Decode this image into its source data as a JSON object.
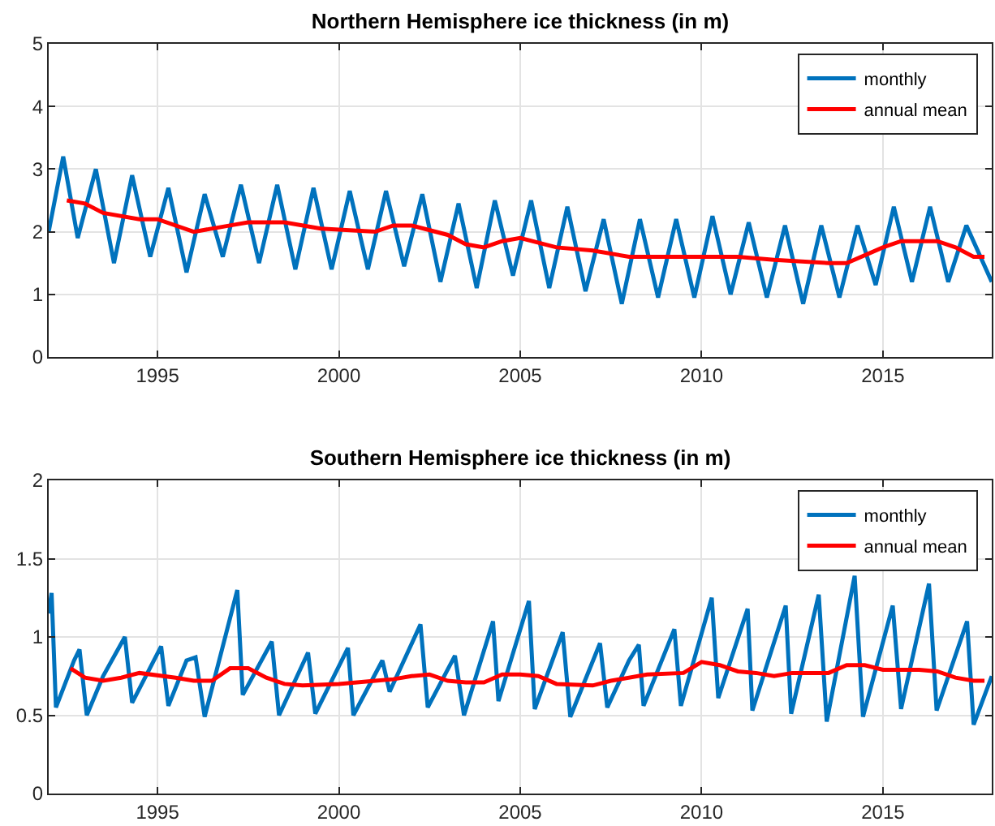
{
  "chart_data": [
    {
      "type": "line",
      "title": "Northern Hemisphere ice thickness (in m)",
      "xlim": [
        1992,
        2018
      ],
      "xticks": [
        1995,
        2000,
        2005,
        2010,
        2015
      ],
      "ylim": [
        0,
        5
      ],
      "yticks": [
        0,
        1,
        2,
        3,
        4,
        5
      ],
      "grid": true,
      "legend": "top right",
      "series": [
        {
          "name": "monthly",
          "color": "#0072bd",
          "x": [
            1992.0,
            1992.4,
            1992.8,
            1993.3,
            1993.8,
            1994.3,
            1994.8,
            1995.3,
            1995.8,
            1996.3,
            1996.8,
            1997.3,
            1997.8,
            1998.3,
            1998.8,
            1999.3,
            1999.8,
            2000.3,
            2000.8,
            2001.3,
            2001.8,
            2002.3,
            2002.8,
            2003.3,
            2003.8,
            2004.3,
            2004.8,
            2005.3,
            2005.8,
            2006.3,
            2006.8,
            2007.3,
            2007.8,
            2008.3,
            2008.8,
            2009.3,
            2009.8,
            2010.3,
            2010.8,
            2011.3,
            2011.8,
            2012.3,
            2012.8,
            2013.3,
            2013.8,
            2014.3,
            2014.8,
            2015.3,
            2015.8,
            2016.3,
            2016.8,
            2017.3,
            2018.0
          ],
          "values": [
            2.0,
            3.2,
            1.9,
            3.0,
            1.5,
            2.9,
            1.6,
            2.7,
            1.35,
            2.6,
            1.6,
            2.75,
            1.5,
            2.75,
            1.4,
            2.7,
            1.4,
            2.65,
            1.4,
            2.65,
            1.45,
            2.6,
            1.2,
            2.45,
            1.1,
            2.5,
            1.3,
            2.5,
            1.1,
            2.4,
            1.05,
            2.2,
            0.85,
            2.2,
            0.95,
            2.2,
            0.95,
            2.25,
            1.0,
            2.15,
            0.95,
            2.1,
            0.85,
            2.1,
            0.95,
            2.1,
            1.15,
            2.4,
            1.2,
            2.4,
            1.2,
            2.1,
            1.2
          ]
        },
        {
          "name": "annual mean",
          "color": "#ff0000",
          "x": [
            1992.5,
            1993,
            1993.5,
            1994.5,
            1995,
            1996,
            1997,
            1997.5,
            1998.5,
            1999.5,
            2001,
            2001.5,
            2002,
            2003,
            2003.5,
            2004,
            2004.5,
            2005,
            2006,
            2007,
            2008,
            2010,
            2011,
            2012,
            2013.5,
            2014,
            2015,
            2015.5,
            2016.5,
            2017,
            2017.5,
            2017.8
          ],
          "values": [
            2.5,
            2.45,
            2.3,
            2.2,
            2.2,
            2.0,
            2.1,
            2.15,
            2.15,
            2.05,
            2.0,
            2.1,
            2.1,
            1.95,
            1.8,
            1.75,
            1.85,
            1.9,
            1.75,
            1.7,
            1.6,
            1.6,
            1.6,
            1.55,
            1.5,
            1.5,
            1.75,
            1.85,
            1.85,
            1.75,
            1.6,
            1.6
          ]
        }
      ]
    },
    {
      "type": "line",
      "title": "Southern Hemisphere ice thickness (in m)",
      "xlim": [
        1992,
        2018
      ],
      "xticks": [
        1995,
        2000,
        2005,
        2010,
        2015
      ],
      "ylim": [
        0,
        2
      ],
      "yticks": [
        0,
        0.5,
        1,
        1.5,
        2
      ],
      "grid": true,
      "legend": "top right",
      "series": [
        {
          "name": "monthly",
          "color": "#0072bd",
          "x": [
            1992.0,
            1992.08,
            1992.2,
            1992.7,
            1992.85,
            1993.05,
            1993.5,
            1994.1,
            1994.3,
            1995.1,
            1995.3,
            1995.8,
            1996.05,
            1996.3,
            1997.2,
            1997.35,
            1998.15,
            1998.35,
            1999.15,
            1999.35,
            2000.25,
            2000.4,
            2001.2,
            2001.4,
            2002.25,
            2002.45,
            2003.2,
            2003.45,
            2004.25,
            2004.4,
            2005.24,
            2005.4,
            2006.17,
            2006.38,
            2007.2,
            2007.4,
            2008.0,
            2008.27,
            2008.4,
            2009.25,
            2009.43,
            2010.28,
            2010.46,
            2011.27,
            2011.4,
            2012.32,
            2012.47,
            2013.23,
            2013.45,
            2014.22,
            2014.45,
            2015.27,
            2015.5,
            2016.27,
            2016.48,
            2017.32,
            2017.5,
            2018.0
          ],
          "values": [
            1.15,
            1.28,
            0.55,
            0.85,
            0.92,
            0.5,
            0.75,
            1.0,
            0.58,
            0.94,
            0.56,
            0.85,
            0.87,
            0.49,
            1.3,
            0.63,
            0.97,
            0.5,
            0.9,
            0.51,
            0.93,
            0.5,
            0.85,
            0.65,
            1.08,
            0.55,
            0.88,
            0.5,
            1.1,
            0.59,
            1.23,
            0.54,
            1.03,
            0.49,
            0.96,
            0.55,
            0.85,
            0.95,
            0.56,
            1.05,
            0.56,
            1.25,
            0.61,
            1.18,
            0.53,
            1.2,
            0.51,
            1.27,
            0.46,
            1.39,
            0.49,
            1.2,
            0.54,
            1.34,
            0.53,
            1.1,
            0.44,
            0.75
          ]
        },
        {
          "name": "annual mean",
          "color": "#ff0000",
          "x": [
            1992.6,
            1993,
            1993.5,
            1994,
            1994.5,
            1995.5,
            1996,
            1996.5,
            1997,
            1997.5,
            1998,
            1998.5,
            1999,
            2000,
            2001,
            2001.5,
            2002,
            2002.5,
            2003,
            2003.5,
            2004,
            2004.5,
            2005,
            2005.5,
            2006,
            2007,
            2007.5,
            2008.5,
            2009.5,
            2010,
            2010.5,
            2011,
            2011.5,
            2012,
            2012.5,
            2013.5,
            2014,
            2014.5,
            2015,
            2016,
            2016.5,
            2017,
            2017.5,
            2017.8
          ],
          "values": [
            0.8,
            0.74,
            0.72,
            0.74,
            0.77,
            0.74,
            0.72,
            0.72,
            0.8,
            0.8,
            0.74,
            0.7,
            0.69,
            0.7,
            0.72,
            0.73,
            0.75,
            0.76,
            0.72,
            0.71,
            0.71,
            0.76,
            0.76,
            0.75,
            0.7,
            0.69,
            0.72,
            0.76,
            0.77,
            0.84,
            0.82,
            0.78,
            0.77,
            0.75,
            0.77,
            0.77,
            0.82,
            0.82,
            0.79,
            0.79,
            0.78,
            0.74,
            0.72,
            0.72
          ]
        }
      ]
    }
  ]
}
